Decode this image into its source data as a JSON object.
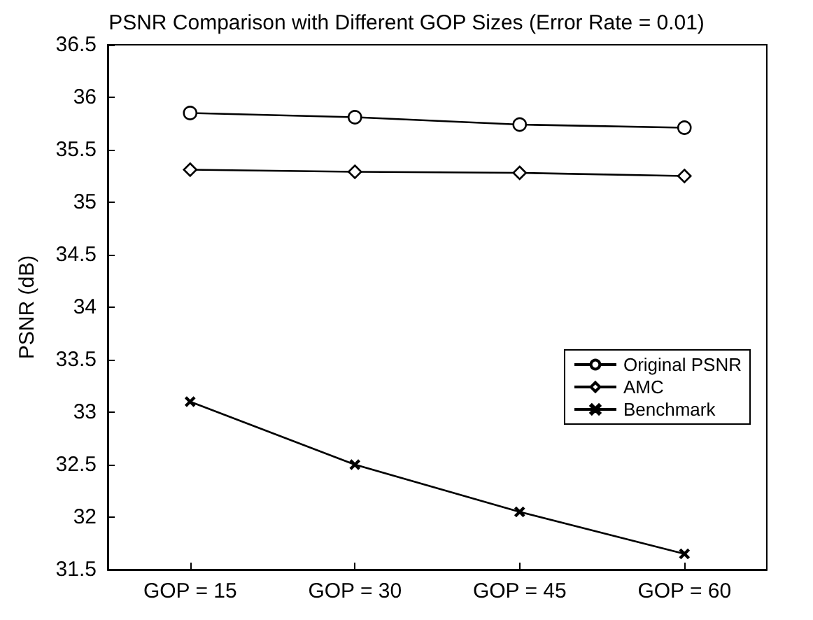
{
  "chart_data": {
    "type": "line",
    "title": "PSNR Comparison with Different GOP Sizes (Error Rate = 0.01)",
    "ylabel": "PSNR (dB)",
    "categories": [
      "GOP = 15",
      "GOP = 30",
      "GOP = 45",
      "GOP = 60"
    ],
    "series": [
      {
        "name": "Original PSNR",
        "color": "#000000",
        "marker": "circle",
        "values": [
          35.85,
          35.81,
          35.74,
          35.71
        ]
      },
      {
        "name": "AMC",
        "color": "#000000",
        "marker": "diamond",
        "values": [
          35.31,
          35.29,
          35.28,
          35.25
        ]
      },
      {
        "name": "Benchmark",
        "color": "#000000",
        "marker": "cross",
        "values": [
          33.1,
          32.5,
          32.05,
          31.65
        ]
      }
    ],
    "ylim": [
      31.5,
      36.5
    ],
    "yticks": [
      31.5,
      32,
      32.5,
      33,
      33.5,
      34,
      34.5,
      35,
      35.5,
      36,
      36.5
    ],
    "grid": false,
    "legend": "right",
    "line_style": "solid"
  }
}
